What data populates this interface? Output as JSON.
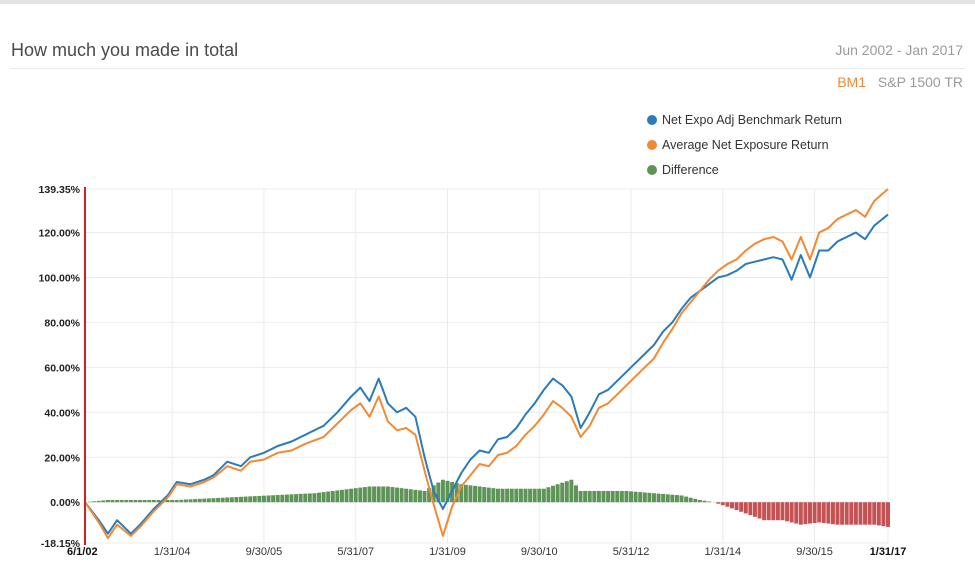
{
  "header": {
    "title": "How much you made in total",
    "date_range": "Jun 2002 - Jan 2017",
    "toggle_active": "BM1",
    "toggle_inactive": "S&P 1500 TR"
  },
  "colors": {
    "benchmark": "#2b7bba",
    "exposure": "#f28a35",
    "diff_pos": "#5f9458",
    "diff_neg": "#c45255",
    "marker": "#d22222"
  },
  "chart_data": {
    "type": "line",
    "x_start": "6/1/02",
    "x_end": "1/31/17",
    "y_range": [
      -18.15,
      139.35
    ],
    "y_ticks": [
      "139.35%",
      "120.00%",
      "100.00%",
      "80.00%",
      "60.00%",
      "40.00%",
      "20.00%",
      "0.00%",
      "-18.15%"
    ],
    "y_tick_values": [
      139.35,
      120,
      100,
      80,
      60,
      40,
      20,
      0,
      -18.15
    ],
    "x_ticks": [
      {
        "label": "6/1/02",
        "month": 0
      },
      {
        "label": "1/31/04",
        "month": 19
      },
      {
        "label": "9/30/05",
        "month": 39
      },
      {
        "label": "5/31/07",
        "month": 59
      },
      {
        "label": "1/31/09",
        "month": 79
      },
      {
        "label": "9/30/10",
        "month": 99
      },
      {
        "label": "5/31/12",
        "month": 119
      },
      {
        "label": "1/31/14",
        "month": 139
      },
      {
        "label": "9/30/15",
        "month": 159
      },
      {
        "label": "1/31/17",
        "month": 175
      }
    ],
    "legend": [
      {
        "label": "Net Expo Adj Benchmark Return",
        "color": "#2b7bba"
      },
      {
        "label": "Average Net Exposure Return",
        "color": "#f28a35"
      },
      {
        "label": "Difference",
        "color": "#5f9458"
      }
    ],
    "series": [
      {
        "name": "Net Expo Adj Benchmark Return",
        "anchors": [
          [
            0,
            0
          ],
          [
            3,
            -8
          ],
          [
            5,
            -14
          ],
          [
            7,
            -8
          ],
          [
            10,
            -14
          ],
          [
            12,
            -10
          ],
          [
            15,
            -3
          ],
          [
            18,
            3
          ],
          [
            20,
            9
          ],
          [
            23,
            8
          ],
          [
            26,
            10
          ],
          [
            28,
            12
          ],
          [
            31,
            18
          ],
          [
            34,
            16
          ],
          [
            36,
            20
          ],
          [
            39,
            22
          ],
          [
            42,
            25
          ],
          [
            45,
            27
          ],
          [
            48,
            30
          ],
          [
            52,
            34
          ],
          [
            55,
            40
          ],
          [
            58,
            47
          ],
          [
            60,
            51
          ],
          [
            62,
            45
          ],
          [
            64,
            55
          ],
          [
            66,
            44
          ],
          [
            68,
            40
          ],
          [
            70,
            42
          ],
          [
            72,
            38
          ],
          [
            74,
            20
          ],
          [
            76,
            5
          ],
          [
            78,
            -3
          ],
          [
            80,
            5
          ],
          [
            82,
            13
          ],
          [
            84,
            19
          ],
          [
            86,
            23
          ],
          [
            88,
            22
          ],
          [
            90,
            28
          ],
          [
            92,
            29
          ],
          [
            94,
            33
          ],
          [
            96,
            39
          ],
          [
            98,
            44
          ],
          [
            100,
            50
          ],
          [
            102,
            55
          ],
          [
            104,
            52
          ],
          [
            106,
            47
          ],
          [
            108,
            33
          ],
          [
            110,
            40
          ],
          [
            112,
            48
          ],
          [
            114,
            50
          ],
          [
            116,
            54
          ],
          [
            118,
            58
          ],
          [
            120,
            62
          ],
          [
            122,
            66
          ],
          [
            124,
            70
          ],
          [
            126,
            76
          ],
          [
            128,
            80
          ],
          [
            130,
            86
          ],
          [
            132,
            91
          ],
          [
            134,
            94
          ],
          [
            136,
            97
          ],
          [
            138,
            100
          ],
          [
            140,
            101
          ],
          [
            142,
            103
          ],
          [
            144,
            106
          ],
          [
            146,
            107
          ],
          [
            148,
            108
          ],
          [
            150,
            109
          ],
          [
            152,
            108
          ],
          [
            154,
            99
          ],
          [
            156,
            110
          ],
          [
            158,
            100
          ],
          [
            160,
            112
          ],
          [
            162,
            112
          ],
          [
            164,
            116
          ],
          [
            166,
            118
          ],
          [
            168,
            120
          ],
          [
            170,
            117
          ],
          [
            172,
            123
          ],
          [
            175,
            128
          ]
        ]
      },
      {
        "name": "Average Net Exposure Return",
        "anchors": [
          [
            0,
            0
          ],
          [
            3,
            -9
          ],
          [
            5,
            -16
          ],
          [
            7,
            -10
          ],
          [
            10,
            -15
          ],
          [
            12,
            -11
          ],
          [
            15,
            -4
          ],
          [
            18,
            2
          ],
          [
            20,
            8
          ],
          [
            23,
            7
          ],
          [
            26,
            9
          ],
          [
            28,
            11
          ],
          [
            31,
            16
          ],
          [
            34,
            14
          ],
          [
            36,
            18
          ],
          [
            39,
            19
          ],
          [
            42,
            22
          ],
          [
            45,
            23
          ],
          [
            48,
            26
          ],
          [
            52,
            29
          ],
          [
            55,
            35
          ],
          [
            58,
            41
          ],
          [
            60,
            44
          ],
          [
            62,
            38
          ],
          [
            64,
            47
          ],
          [
            66,
            36
          ],
          [
            68,
            32
          ],
          [
            70,
            33
          ],
          [
            72,
            30
          ],
          [
            74,
            14
          ],
          [
            76,
            -1
          ],
          [
            78,
            -15
          ],
          [
            80,
            -2
          ],
          [
            82,
            7
          ],
          [
            84,
            12
          ],
          [
            86,
            17
          ],
          [
            88,
            16
          ],
          [
            90,
            21
          ],
          [
            92,
            22
          ],
          [
            94,
            25
          ],
          [
            96,
            30
          ],
          [
            98,
            34
          ],
          [
            100,
            39
          ],
          [
            102,
            45
          ],
          [
            104,
            42
          ],
          [
            106,
            38
          ],
          [
            108,
            29
          ],
          [
            110,
            34
          ],
          [
            112,
            42
          ],
          [
            114,
            44
          ],
          [
            116,
            48
          ],
          [
            118,
            52
          ],
          [
            120,
            56
          ],
          [
            122,
            60
          ],
          [
            124,
            64
          ],
          [
            126,
            71
          ],
          [
            128,
            77
          ],
          [
            130,
            84
          ],
          [
            132,
            89
          ],
          [
            134,
            94
          ],
          [
            136,
            99
          ],
          [
            138,
            103
          ],
          [
            140,
            106
          ],
          [
            142,
            108
          ],
          [
            144,
            112
          ],
          [
            146,
            115
          ],
          [
            148,
            117
          ],
          [
            150,
            118
          ],
          [
            152,
            116
          ],
          [
            154,
            108
          ],
          [
            156,
            118
          ],
          [
            158,
            108
          ],
          [
            160,
            120
          ],
          [
            162,
            122
          ],
          [
            164,
            126
          ],
          [
            166,
            128
          ],
          [
            168,
            130
          ],
          [
            170,
            127
          ],
          [
            172,
            134
          ],
          [
            175,
            139.35
          ]
        ]
      },
      {
        "name": "Difference",
        "anchors": [
          [
            0,
            0
          ],
          [
            5,
            1
          ],
          [
            10,
            1
          ],
          [
            20,
            1
          ],
          [
            30,
            2
          ],
          [
            40,
            3
          ],
          [
            50,
            4
          ],
          [
            58,
            6
          ],
          [
            62,
            7
          ],
          [
            66,
            7
          ],
          [
            70,
            6
          ],
          [
            74,
            5
          ],
          [
            78,
            10
          ],
          [
            82,
            8
          ],
          [
            90,
            6
          ],
          [
            100,
            6
          ],
          [
            106,
            10
          ],
          [
            108,
            5
          ],
          [
            112,
            5
          ],
          [
            118,
            5
          ],
          [
            124,
            4
          ],
          [
            130,
            3
          ],
          [
            134,
            1
          ],
          [
            137,
            0
          ],
          [
            140,
            -2
          ],
          [
            144,
            -5
          ],
          [
            148,
            -8
          ],
          [
            152,
            -8
          ],
          [
            156,
            -10
          ],
          [
            160,
            -9
          ],
          [
            164,
            -10
          ],
          [
            168,
            -10
          ],
          [
            172,
            -10
          ],
          [
            175,
            -11
          ]
        ]
      }
    ]
  }
}
